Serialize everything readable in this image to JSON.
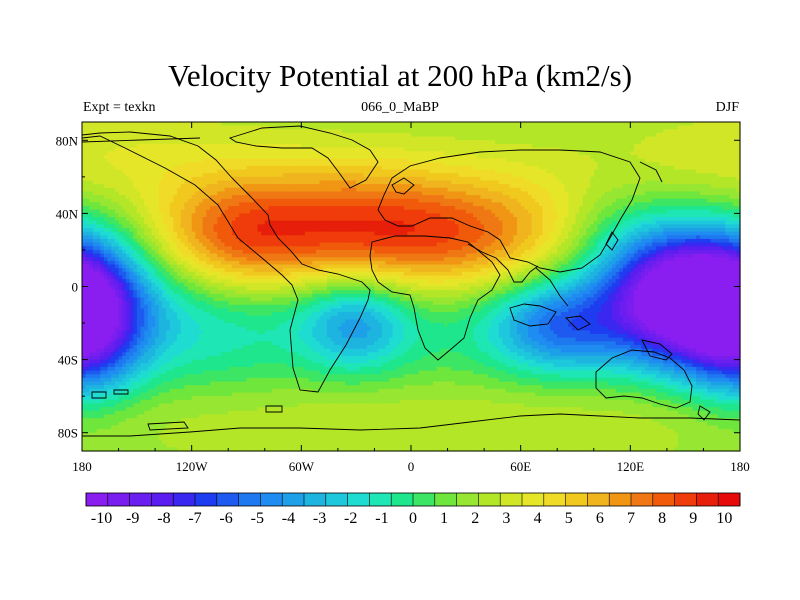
{
  "chart_data": {
    "type": "heatmap",
    "title": "Velocity Potential at 200 hPa (km2/s)",
    "subtitle_left": "Expt = texkn",
    "subtitle_center": "066_0_MaBP",
    "subtitle_right": "DJF",
    "xlim": [
      -180,
      180
    ],
    "ylim": [
      -90,
      90
    ],
    "x_ticks": [
      {
        "value": -180,
        "label": "180"
      },
      {
        "value": -120,
        "label": "120W"
      },
      {
        "value": -60,
        "label": "60W"
      },
      {
        "value": 0,
        "label": "0"
      },
      {
        "value": 60,
        "label": "60E"
      },
      {
        "value": 120,
        "label": "120E"
      },
      {
        "value": 180,
        "label": "180"
      }
    ],
    "y_ticks": [
      {
        "value": 80,
        "label": "80N"
      },
      {
        "value": 40,
        "label": "40N"
      },
      {
        "value": 0,
        "label": "0"
      },
      {
        "value": -40,
        "label": "40S"
      },
      {
        "value": -80,
        "label": "80S"
      }
    ],
    "colorbar_range": [
      -10.5,
      10.5
    ],
    "colorbar_labels": [
      "-10",
      "-9",
      "-8",
      "-7",
      "-6",
      "-5",
      "-4",
      "-3",
      "-2",
      "-1",
      "0",
      "1",
      "2",
      "3",
      "4",
      "5",
      "6",
      "7",
      "8",
      "9",
      "10"
    ],
    "colorbar_colors": [
      "#8a1ef0",
      "#7a1ef0",
      "#6a1ef0",
      "#5a1ef0",
      "#3a28f0",
      "#1e3cf0",
      "#1e5af0",
      "#1e78f0",
      "#1e8cf0",
      "#1ea0e8",
      "#1eb4e0",
      "#1ec8dc",
      "#1edcd2",
      "#1ee6b4",
      "#1ee68c",
      "#3ce664",
      "#6ee63c",
      "#96e632",
      "#b4e628",
      "#d2e628",
      "#e6e628",
      "#f0dc28",
      "#f0c81e",
      "#f0b41e",
      "#f09614",
      "#f07814",
      "#f05a0a",
      "#f03c0a",
      "#e61e0a",
      "#e60a0a"
    ],
    "features": [
      {
        "type": "high",
        "name": "Eurasian / N Africa maximum",
        "lon": 20,
        "lat": 18,
        "value": 10
      },
      {
        "type": "high",
        "name": "N America maximum",
        "lon": -100,
        "lat": 22,
        "value": 8
      },
      {
        "type": "low",
        "name": "W Pacific minimum",
        "lon": 148,
        "lat": -5,
        "value": -10
      },
      {
        "type": "low",
        "name": "Dateline minimum (wraps)",
        "lon": -178,
        "lat": -22,
        "value": -7
      },
      {
        "type": "low",
        "name": "Indian Ocean minimum",
        "lon": 85,
        "lat": -20,
        "value": -6
      },
      {
        "type": "low",
        "name": "S Atlantic minimum",
        "lon": -30,
        "lat": -20,
        "value": -3
      }
    ]
  }
}
